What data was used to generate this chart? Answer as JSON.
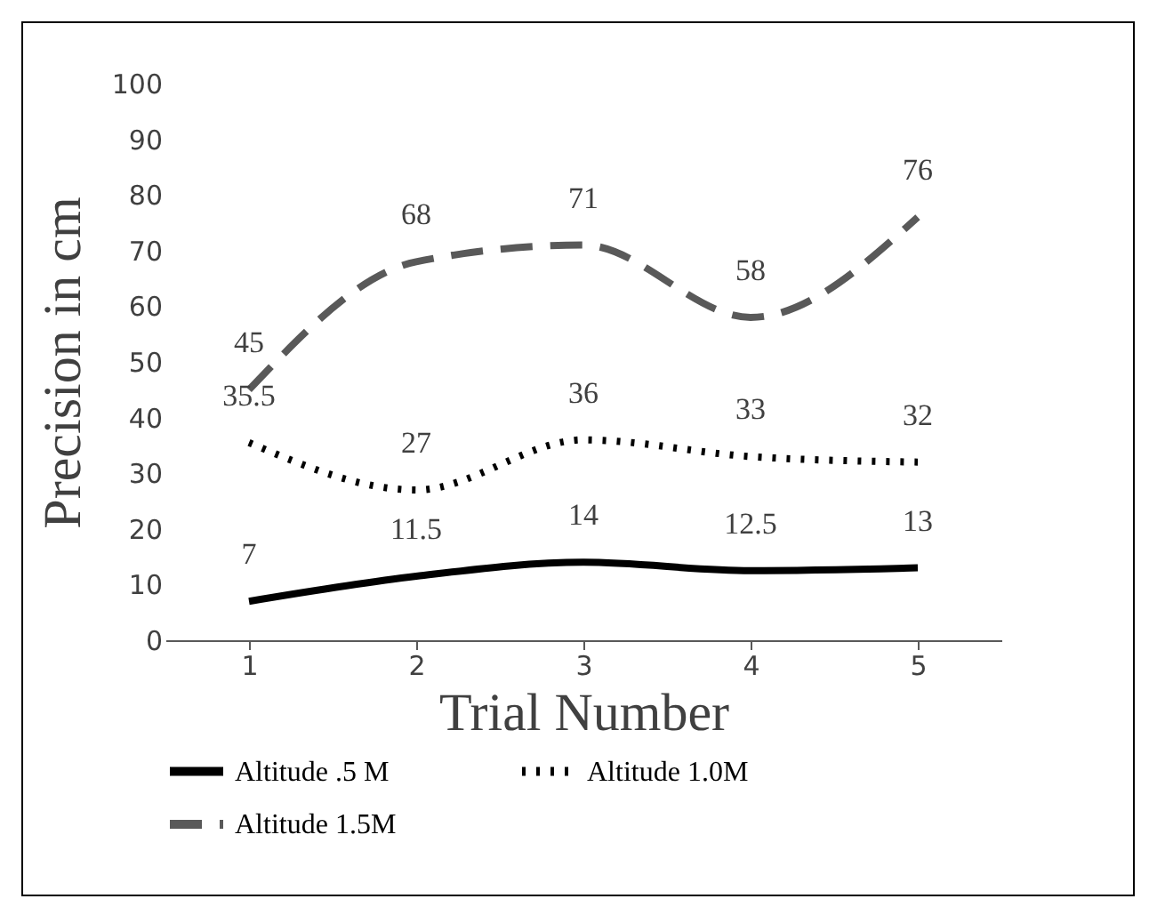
{
  "chart_data": {
    "type": "line",
    "xlabel": "Trial Number",
    "ylabel": "Precision in cm",
    "categories": [
      "1",
      "2",
      "3",
      "4",
      "5"
    ],
    "series": [
      {
        "name": "Altitude .5 M",
        "color": "#000000",
        "line_style": "solid",
        "values": [
          7,
          11.5,
          14,
          12.5,
          13
        ]
      },
      {
        "name": "Altitude 1.0M",
        "color": "#000000",
        "line_style": "dotted",
        "values": [
          35.5,
          27,
          36,
          33,
          32
        ]
      },
      {
        "name": "Altitude 1.5M",
        "color": "#595959",
        "line_style": "dashed",
        "values": [
          45,
          68,
          71,
          58,
          76
        ]
      }
    ],
    "ylim": [
      0,
      100
    ],
    "yticks": [
      0,
      10,
      20,
      30,
      40,
      50,
      60,
      70,
      80,
      90,
      100
    ],
    "grid": false,
    "legend": "bottom",
    "data_labels": true,
    "marker": "none"
  }
}
